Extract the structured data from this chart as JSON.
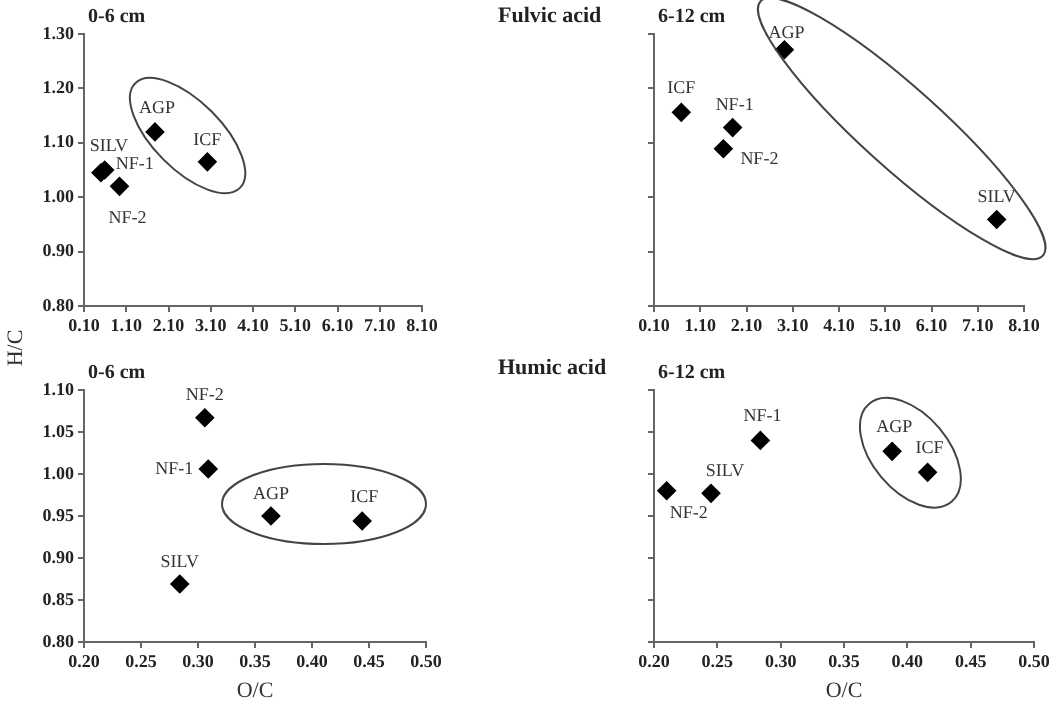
{
  "chart_data": [
    {
      "type": "scatter",
      "subtitle": "0-6 cm",
      "ylabel": "H/C",
      "marker": "diamond",
      "xlim": [
        0.1,
        8.1
      ],
      "xticks": [
        {
          "value": 0.1,
          "label": "0.10"
        },
        {
          "value": 1.1,
          "label": "1.10"
        },
        {
          "value": 2.1,
          "label": "2.10"
        },
        {
          "value": 3.1,
          "label": "3.10"
        },
        {
          "value": 4.1,
          "label": "4.10"
        },
        {
          "value": 5.1,
          "label": "5.10"
        },
        {
          "value": 6.1,
          "label": "6.10"
        },
        {
          "value": 7.1,
          "label": "7.10"
        },
        {
          "value": 8.1,
          "label": "8.10"
        }
      ],
      "ylim": [
        0.8,
        1.3
      ],
      "yticks": [
        {
          "value": 0.8,
          "label": "0.80"
        },
        {
          "value": 0.9,
          "label": "0.90"
        },
        {
          "value": 1.0,
          "label": "1.00"
        },
        {
          "value": 1.1,
          "label": "1.10"
        },
        {
          "value": 1.2,
          "label": "1.20"
        },
        {
          "value": 1.3,
          "label": "1.30"
        }
      ],
      "series": [
        {
          "name": "SILV",
          "color": "#000000",
          "x": [
            0.5
          ],
          "values": [
            1.045
          ]
        },
        {
          "name": "NF-1",
          "color": "#000000",
          "x": [
            0.59
          ],
          "values": [
            1.05
          ]
        },
        {
          "name": "NF-2",
          "color": "#000000",
          "x": [
            0.94
          ],
          "values": [
            1.02
          ]
        },
        {
          "name": "AGP",
          "color": "#000000",
          "x": [
            1.78
          ],
          "values": [
            1.12
          ]
        },
        {
          "name": "ICF",
          "color": "#000000",
          "x": [
            3.02
          ],
          "values": [
            1.065
          ]
        }
      ]
    },
    {
      "type": "scatter",
      "title": "Fulvic acid",
      "subtitle": "6-12 cm",
      "marker": "diamond",
      "tick_labels": "x",
      "xlim": [
        0.1,
        8.1
      ],
      "xticks": [
        {
          "value": 0.1,
          "label": "0.10"
        },
        {
          "value": 1.1,
          "label": "1.10"
        },
        {
          "value": 2.1,
          "label": "2.10"
        },
        {
          "value": 3.1,
          "label": "3.10"
        },
        {
          "value": 4.1,
          "label": "4.10"
        },
        {
          "value": 5.1,
          "label": "5.10"
        },
        {
          "value": 6.1,
          "label": "6.10"
        },
        {
          "value": 7.1,
          "label": "7.10"
        },
        {
          "value": 8.1,
          "label": "8.10"
        }
      ],
      "ylim": [
        0.8,
        1.3
      ],
      "yticks": [
        {
          "value": 0.8,
          "label": null
        },
        {
          "value": 0.9,
          "label": null
        },
        {
          "value": 1.0,
          "label": null
        },
        {
          "value": 1.1,
          "label": null
        },
        {
          "value": 1.2,
          "label": null
        },
        {
          "value": 1.3,
          "label": null
        }
      ],
      "series": [
        {
          "name": "ICF",
          "color": "#000000",
          "x": [
            0.69
          ],
          "values": [
            1.156
          ]
        },
        {
          "name": "NF-1",
          "color": "#000000",
          "x": [
            1.8
          ],
          "values": [
            1.128
          ]
        },
        {
          "name": "NF-2",
          "color": "#000000",
          "x": [
            1.6
          ],
          "values": [
            1.089
          ]
        },
        {
          "name": "AGP",
          "color": "#000000",
          "x": [
            2.92
          ],
          "values": [
            1.271
          ]
        },
        {
          "name": "SILV",
          "color": "#000000",
          "x": [
            7.51
          ],
          "values": [
            0.959
          ]
        }
      ]
    },
    {
      "type": "scatter",
      "subtitle": "0-6 cm",
      "xlabel": "O/C",
      "marker": "diamond",
      "xlim": [
        0.2,
        0.5
      ],
      "xticks": [
        {
          "value": 0.2,
          "label": "0.20"
        },
        0.25,
        {
          "value": 0.3,
          "label": "0.30"
        },
        0.35,
        {
          "value": 0.4,
          "label": "0.40"
        },
        0.45,
        {
          "value": 0.5,
          "label": "0.50"
        }
      ],
      "ylim": [
        0.8,
        1.1
      ],
      "yticks": [
        {
          "value": 0.8,
          "label": "0.80"
        },
        0.85,
        {
          "value": 0.9,
          "label": "0.90"
        },
        0.95,
        {
          "value": 1.0,
          "label": "1.00"
        },
        1.05,
        {
          "value": 1.1,
          "label": "1.10"
        }
      ],
      "series": [
        {
          "name": "NF-2",
          "color": "#000000",
          "x": [
            0.306
          ],
          "values": [
            1.067
          ]
        },
        {
          "name": "NF-1",
          "color": "#000000",
          "x": [
            0.309
          ],
          "values": [
            1.006
          ]
        },
        {
          "name": "AGP",
          "color": "#000000",
          "x": [
            0.364
          ],
          "values": [
            0.95
          ]
        },
        {
          "name": "ICF",
          "color": "#000000",
          "x": [
            0.444
          ],
          "values": [
            0.944
          ]
        },
        {
          "name": "SILV",
          "color": "#000000",
          "x": [
            0.284
          ],
          "values": [
            0.869
          ]
        }
      ]
    },
    {
      "type": "scatter",
      "title": "Humic acid",
      "subtitle": "6-12 cm",
      "xlabel": "O/C",
      "marker": "diamond",
      "tick_labels": "x",
      "xlim": [
        0.2,
        0.5
      ],
      "xticks": [
        {
          "value": 0.2,
          "label": "0.20"
        },
        0.25,
        {
          "value": 0.3,
          "label": "0.30"
        },
        0.35,
        {
          "value": 0.4,
          "label": "0.40"
        },
        0.45,
        {
          "value": 0.5,
          "label": "0.50"
        }
      ],
      "ylim": [
        0.8,
        1.1
      ],
      "yticks": [
        {
          "value": 0.8,
          "label": null
        },
        {
          "value": 0.85,
          "label": null
        },
        {
          "value": 0.9,
          "label": null
        },
        {
          "value": 0.95,
          "label": null
        },
        {
          "value": 1.0,
          "label": null
        },
        {
          "value": 1.05,
          "label": null
        },
        {
          "value": 1.1,
          "label": null
        }
      ],
      "series": [
        {
          "name": "NF-2",
          "color": "#000000",
          "x": [
            0.21
          ],
          "values": [
            0.98
          ]
        },
        {
          "name": "SILV",
          "color": "#000000",
          "x": [
            0.245
          ],
          "values": [
            0.977
          ]
        },
        {
          "name": "NF-1",
          "color": "#000000",
          "x": [
            0.284
          ],
          "values": [
            1.04
          ]
        },
        {
          "name": "AGP",
          "color": "#000000",
          "x": [
            0.388
          ],
          "values": [
            1.027
          ]
        },
        {
          "name": "ICF",
          "color": "#000000",
          "x": [
            0.416
          ],
          "values": [
            1.002
          ]
        }
      ]
    }
  ]
}
